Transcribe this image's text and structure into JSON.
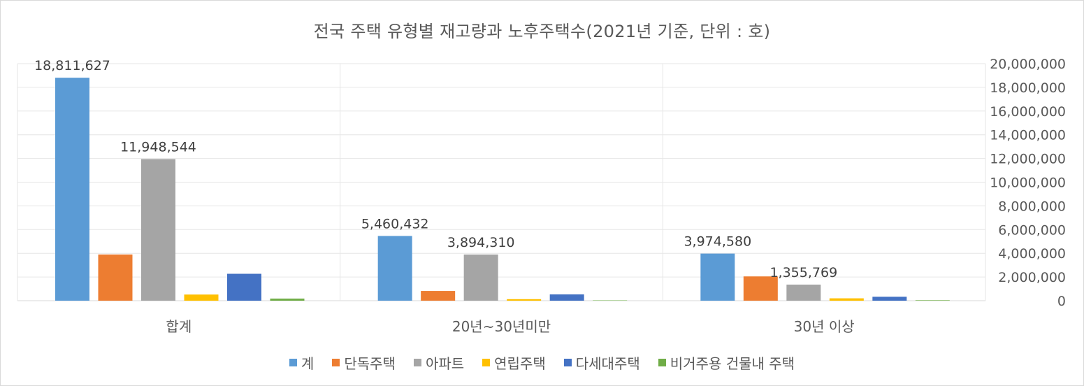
{
  "chart_data": {
    "type": "bar",
    "title": "전국 주택 유형별 재고량과 노후주택수(2021년 기준, 단위 : 호)",
    "categories": [
      "합계",
      "20년~30년미만",
      "30년 이상"
    ],
    "series": [
      {
        "name": "계",
        "color": "#5b9bd5",
        "values": [
          18811627,
          5460432,
          3974580
        ]
      },
      {
        "name": "단독주택",
        "color": "#ed7d31",
        "values": [
          3897000,
          822000,
          2050000
        ]
      },
      {
        "name": "아파트",
        "color": "#a5a5a5",
        "values": [
          11948544,
          3894310,
          1355769
        ]
      },
      {
        "name": "연립주택",
        "color": "#ffc000",
        "values": [
          518000,
          130000,
          200000
        ]
      },
      {
        "name": "다세대주택",
        "color": "#4472c4",
        "values": [
          2270000,
          530000,
          330000
        ]
      },
      {
        "name": "비거주용 건물내 주택",
        "color": "#70ad47",
        "values": [
          178000,
          30000,
          40000
        ]
      }
    ],
    "data_labels": [
      {
        "category": "합계",
        "series": "계",
        "text": "18,811,627"
      },
      {
        "category": "합계",
        "series": "아파트",
        "text": "11,948,544"
      },
      {
        "category": "20년~30년미만",
        "series": "계",
        "text": "5,460,432"
      },
      {
        "category": "20년~30년미만",
        "series": "아파트",
        "text": "3,894,310"
      },
      {
        "category": "30년 이상",
        "series": "계",
        "text": "3,974,580"
      },
      {
        "category": "30년 이상",
        "series": "아파트",
        "text": "1,355,769"
      }
    ],
    "yaxis": {
      "position": "right",
      "ylim": [
        0,
        20000000
      ],
      "ticks": [
        0,
        2000000,
        4000000,
        6000000,
        8000000,
        10000000,
        12000000,
        14000000,
        16000000,
        18000000,
        20000000
      ],
      "tick_labels": [
        "0",
        "2,000,000",
        "4,000,000",
        "6,000,000",
        "8,000,000",
        "10,000,000",
        "12,000,000",
        "14,000,000",
        "16,000,000",
        "18,000,000",
        "20,000,000"
      ]
    },
    "grid": true,
    "legend_position": "bottom"
  }
}
